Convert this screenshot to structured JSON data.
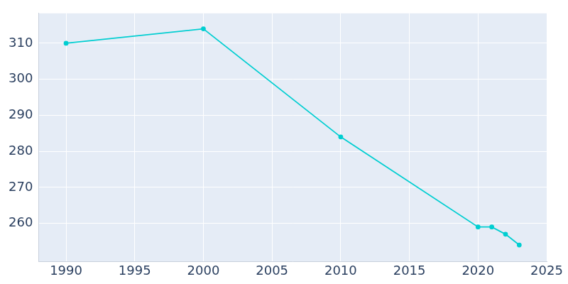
{
  "chart_data": {
    "type": "line",
    "x": [
      1990,
      2000,
      2010,
      2020,
      2021,
      2022,
      2023
    ],
    "values": [
      310,
      314,
      284,
      259,
      259,
      257,
      254
    ],
    "color": "#00ced1",
    "marker": "circle",
    "line_style": "solid",
    "xlim": [
      1988,
      2025
    ],
    "xticks": [
      1990,
      1995,
      2000,
      2005,
      2010,
      2015,
      2020,
      2025
    ],
    "ylim": [
      249.4,
      318.3
    ],
    "yticks": [
      260,
      270,
      280,
      290,
      300,
      310
    ],
    "grid": true
  }
}
